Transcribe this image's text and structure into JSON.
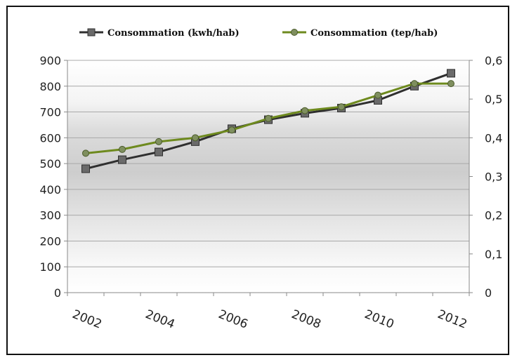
{
  "chart_data": {
    "type": "line",
    "x": [
      "2002",
      "2003",
      "2004",
      "2005",
      "2006",
      "2007",
      "2008",
      "2009",
      "2010",
      "2011",
      "2012"
    ],
    "x_tick_labels": [
      "2002",
      "2004",
      "2006",
      "2008",
      "2010",
      "2012"
    ],
    "series": [
      {
        "name": "Consommation (kwh/hab)",
        "axis": "left",
        "values": [
          480,
          515,
          545,
          585,
          635,
          670,
          695,
          715,
          745,
          800,
          850
        ],
        "color": "#2f2f2f",
        "marker": "square"
      },
      {
        "name": "Consommation (tep/hab)",
        "axis": "right",
        "values": [
          0.36,
          0.37,
          0.39,
          0.4,
          0.42,
          0.45,
          0.47,
          0.48,
          0.51,
          0.54,
          0.54
        ],
        "color": "#6e8a1e",
        "marker": "circle"
      }
    ],
    "y_left": {
      "min": 0,
      "max": 900,
      "ticks": [
        "0",
        "100",
        "200",
        "300",
        "400",
        "500",
        "600",
        "700",
        "800",
        "900"
      ]
    },
    "y_right": {
      "min": 0,
      "max": 0.6,
      "ticks": [
        "0",
        "0,1",
        "0,2",
        "0,3",
        "0,4",
        "0,5",
        "0,6"
      ]
    },
    "grid": true,
    "legend_position": "top"
  }
}
